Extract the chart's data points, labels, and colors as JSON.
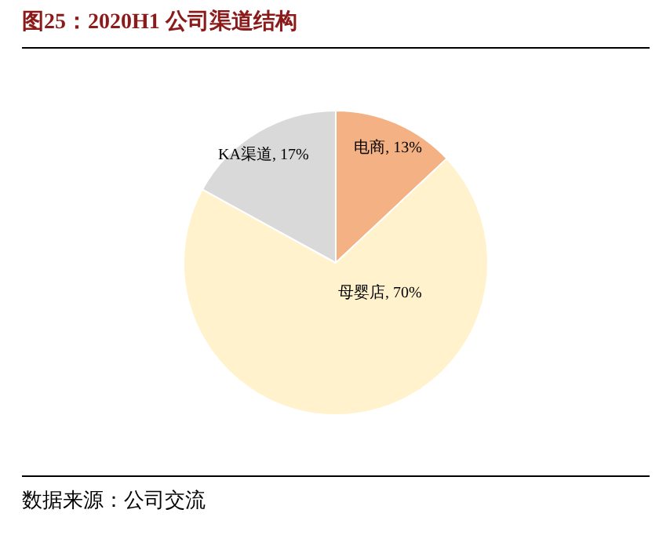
{
  "chart_data": {
    "type": "pie",
    "title": "图25：2020H1 公司渠道结构",
    "categories": [
      "电商",
      "母婴店",
      "KA渠道"
    ],
    "values": [
      13,
      70,
      17
    ],
    "colors": [
      "#f4b183",
      "#fff2cc",
      "#d9d9d9"
    ],
    "value_labels": [
      ", 13%",
      ", 70%",
      ", 17%"
    ],
    "annotations": [
      "数据来源：公司交流"
    ]
  }
}
